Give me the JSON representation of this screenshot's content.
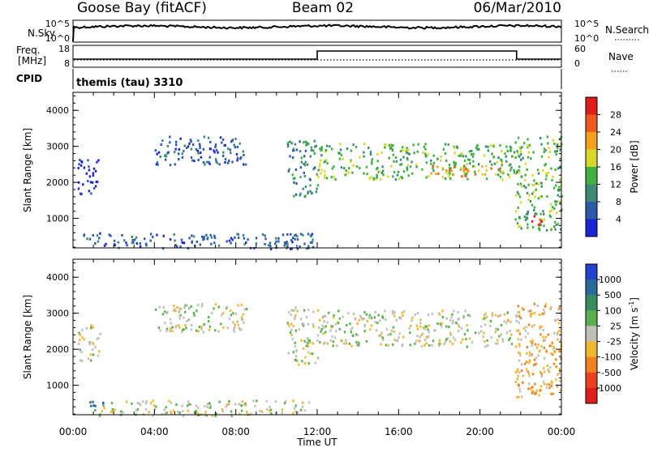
{
  "header": {
    "station": "Goose Bay (fitACF)",
    "beam": "Beam 02",
    "date": "06/Mar/2010"
  },
  "strip_labels": {
    "nsky": "N.Sky",
    "nsearch": "N.Search",
    "freq": "Freq.",
    "freq_unit": "[MHz]",
    "nave": "Nave",
    "cpid": "CPID",
    "cpid_value": "themis (tau) 3310"
  },
  "strip_ticks": {
    "noise_top": "10^5",
    "noise_bottom": "10^0",
    "freq_top": "18",
    "freq_bottom": "8",
    "nave_top": "60",
    "nave_bottom": "0"
  },
  "chart_data": [
    {
      "type": "heatmap",
      "name": "power",
      "xlabel": "Time UT",
      "ylabel": "Slant Range [km]",
      "xlim": [
        0,
        24
      ],
      "ylim": [
        180,
        4500
      ],
      "yticks": [
        "1000",
        "2000",
        "3000",
        "4000"
      ],
      "colorbar_label": "Power [dB]",
      "colorbar_ticks": [
        "4",
        "8",
        "12",
        "16",
        "20",
        "24",
        "28"
      ],
      "colorbar_colors": [
        "#1a23d6",
        "#2a5aa8",
        "#3d8a74",
        "#40b040",
        "#d8d82a",
        "#f2a020",
        "#f05a20",
        "#e01c1c"
      ],
      "scatter_regions": [
        {
          "x": [
            0.2,
            1.3
          ],
          "y": [
            1700,
            2700
          ],
          "level": 0
        },
        {
          "x": [
            0.4,
            1.5
          ],
          "y": [
            450,
            650
          ],
          "level": 1
        },
        {
          "x": [
            4.0,
            8.5
          ],
          "y": [
            2500,
            3300
          ],
          "level": 1
        },
        {
          "x": [
            10.5,
            12.0
          ],
          "y": [
            1600,
            3200
          ],
          "level": 2
        },
        {
          "x": [
            12.0,
            22.0
          ],
          "y": [
            2100,
            3100
          ],
          "level": 3
        },
        {
          "x": [
            17.5,
            21.0
          ],
          "y": [
            2200,
            2500
          ],
          "level": 5
        },
        {
          "x": [
            21.7,
            24.0
          ],
          "y": [
            700,
            3300
          ],
          "level": 3
        },
        {
          "x": [
            22.3,
            23.0
          ],
          "y": [
            800,
            1100
          ],
          "level": 6
        },
        {
          "x": [
            1.0,
            12.0
          ],
          "y": [
            180,
            600
          ],
          "level": 1
        }
      ]
    },
    {
      "type": "heatmap",
      "name": "velocity",
      "xlabel": "Time UT",
      "ylabel": "Slant Range [km]",
      "xlim": [
        0,
        24
      ],
      "ylim": [
        180,
        4500
      ],
      "xticks": [
        "00:00",
        "04:00",
        "08:00",
        "12:00",
        "16:00",
        "20:00",
        "00:00"
      ],
      "yticks": [
        "1000",
        "2000",
        "3000",
        "4000"
      ],
      "colorbar_label": "Velocity [m s",
      "colorbar_label_sup": "-1",
      "colorbar_label_end": "]",
      "colorbar_ticks": [
        "1000",
        "500",
        "100",
        "25",
        "-25",
        "-100",
        "-500",
        "-1000"
      ],
      "colorbar_colors": [
        "#2540d0",
        "#2a6a9a",
        "#3a8a60",
        "#5ab050",
        "#c0c0b8",
        "#f0b830",
        "#f08020",
        "#e84020",
        "#e01c1c"
      ],
      "scatter_regions": [
        {
          "x": [
            0.2,
            1.3
          ],
          "y": [
            1700,
            2700
          ],
          "level": 4
        },
        {
          "x": [
            0.4,
            1.5
          ],
          "y": [
            450,
            650
          ],
          "level": 1
        },
        {
          "x": [
            4.0,
            8.5
          ],
          "y": [
            2500,
            3300
          ],
          "level": 4
        },
        {
          "x": [
            10.5,
            12.0
          ],
          "y": [
            1600,
            3200
          ],
          "level": 4
        },
        {
          "x": [
            12.0,
            22.0
          ],
          "y": [
            2100,
            3100
          ],
          "level": 4
        },
        {
          "x": [
            21.7,
            24.0
          ],
          "y": [
            700,
            3300
          ],
          "level": 5
        },
        {
          "x": [
            22.3,
            23.0
          ],
          "y": [
            800,
            1100
          ],
          "level": 6
        },
        {
          "x": [
            1.0,
            12.0
          ],
          "y": [
            180,
            600
          ],
          "level": 4
        }
      ]
    }
  ]
}
